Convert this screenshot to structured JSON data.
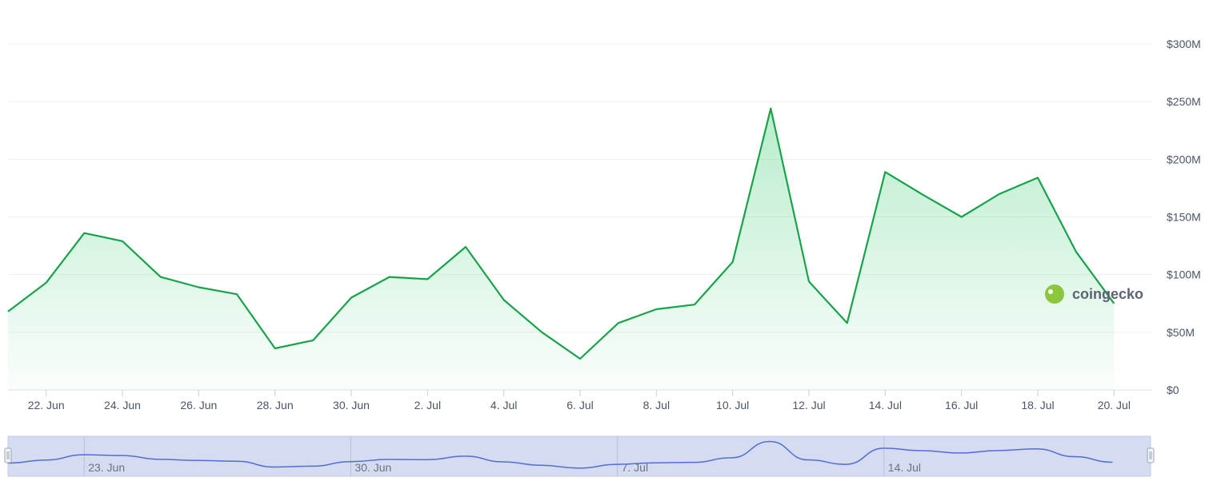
{
  "chart_data": {
    "type": "area",
    "title": "",
    "xlabel": "",
    "ylabel": "",
    "ylim": [
      0,
      300000000
    ],
    "y_ticks": [
      0,
      50000000,
      100000000,
      150000000,
      200000000,
      250000000,
      300000000
    ],
    "y_tick_labels": [
      "$0",
      "$50M",
      "$100M",
      "$150M",
      "$200M",
      "$250M",
      "$300M"
    ],
    "grid": true,
    "x_range": [
      "2025-06-21",
      "2025-07-21"
    ],
    "x_ticks": [
      "2025-06-22",
      "2025-06-24",
      "2025-06-26",
      "2025-06-28",
      "2025-06-30",
      "2025-07-02",
      "2025-07-04",
      "2025-07-06",
      "2025-07-08",
      "2025-07-10",
      "2025-07-12",
      "2025-07-14",
      "2025-07-16",
      "2025-07-18",
      "2025-07-20"
    ],
    "x_tick_labels": [
      "22. Jun",
      "24. Jun",
      "26. Jun",
      "28. Jun",
      "30. Jun",
      "2. Jul",
      "4. Jul",
      "6. Jul",
      "8. Jul",
      "10. Jul",
      "12. Jul",
      "14. Jul",
      "16. Jul",
      "18. Jul",
      "20. Jul"
    ],
    "line_color": "#16a34a",
    "series": [
      {
        "x": [
          "2025-06-21",
          "2025-06-22",
          "2025-06-23",
          "2025-06-24",
          "2025-06-25",
          "2025-06-26",
          "2025-06-27",
          "2025-06-28",
          "2025-06-29",
          "2025-06-30",
          "2025-07-01",
          "2025-07-02",
          "2025-07-03",
          "2025-07-04",
          "2025-07-05",
          "2025-07-06",
          "2025-07-07",
          "2025-07-08",
          "2025-07-09",
          "2025-07-10",
          "2025-07-11",
          "2025-07-12",
          "2025-07-13",
          "2025-07-14",
          "2025-07-15",
          "2025-07-16",
          "2025-07-17",
          "2025-07-18",
          "2025-07-19",
          "2025-07-20"
        ],
        "values": [
          68000000,
          93000000,
          136000000,
          129000000,
          98000000,
          89000000,
          83000000,
          36000000,
          43000000,
          80000000,
          98000000,
          96000000,
          124000000,
          78000000,
          50000000,
          27000000,
          58000000,
          70000000,
          74000000,
          111000000,
          244000000,
          94000000,
          58000000,
          189000000,
          169000000,
          150000000,
          170000000,
          184000000,
          120000000,
          75000000
        ]
      }
    ],
    "brand": "coingecko",
    "navigator": {
      "tick_labels": [
        "23. Jun",
        "30. Jun",
        "7. Jul",
        "14. Jul"
      ],
      "tick_dates": [
        "2025-06-23",
        "2025-06-30",
        "2025-07-07",
        "2025-07-14"
      ],
      "color": "#4f6fd6",
      "fill": "#d5dbf1"
    }
  }
}
